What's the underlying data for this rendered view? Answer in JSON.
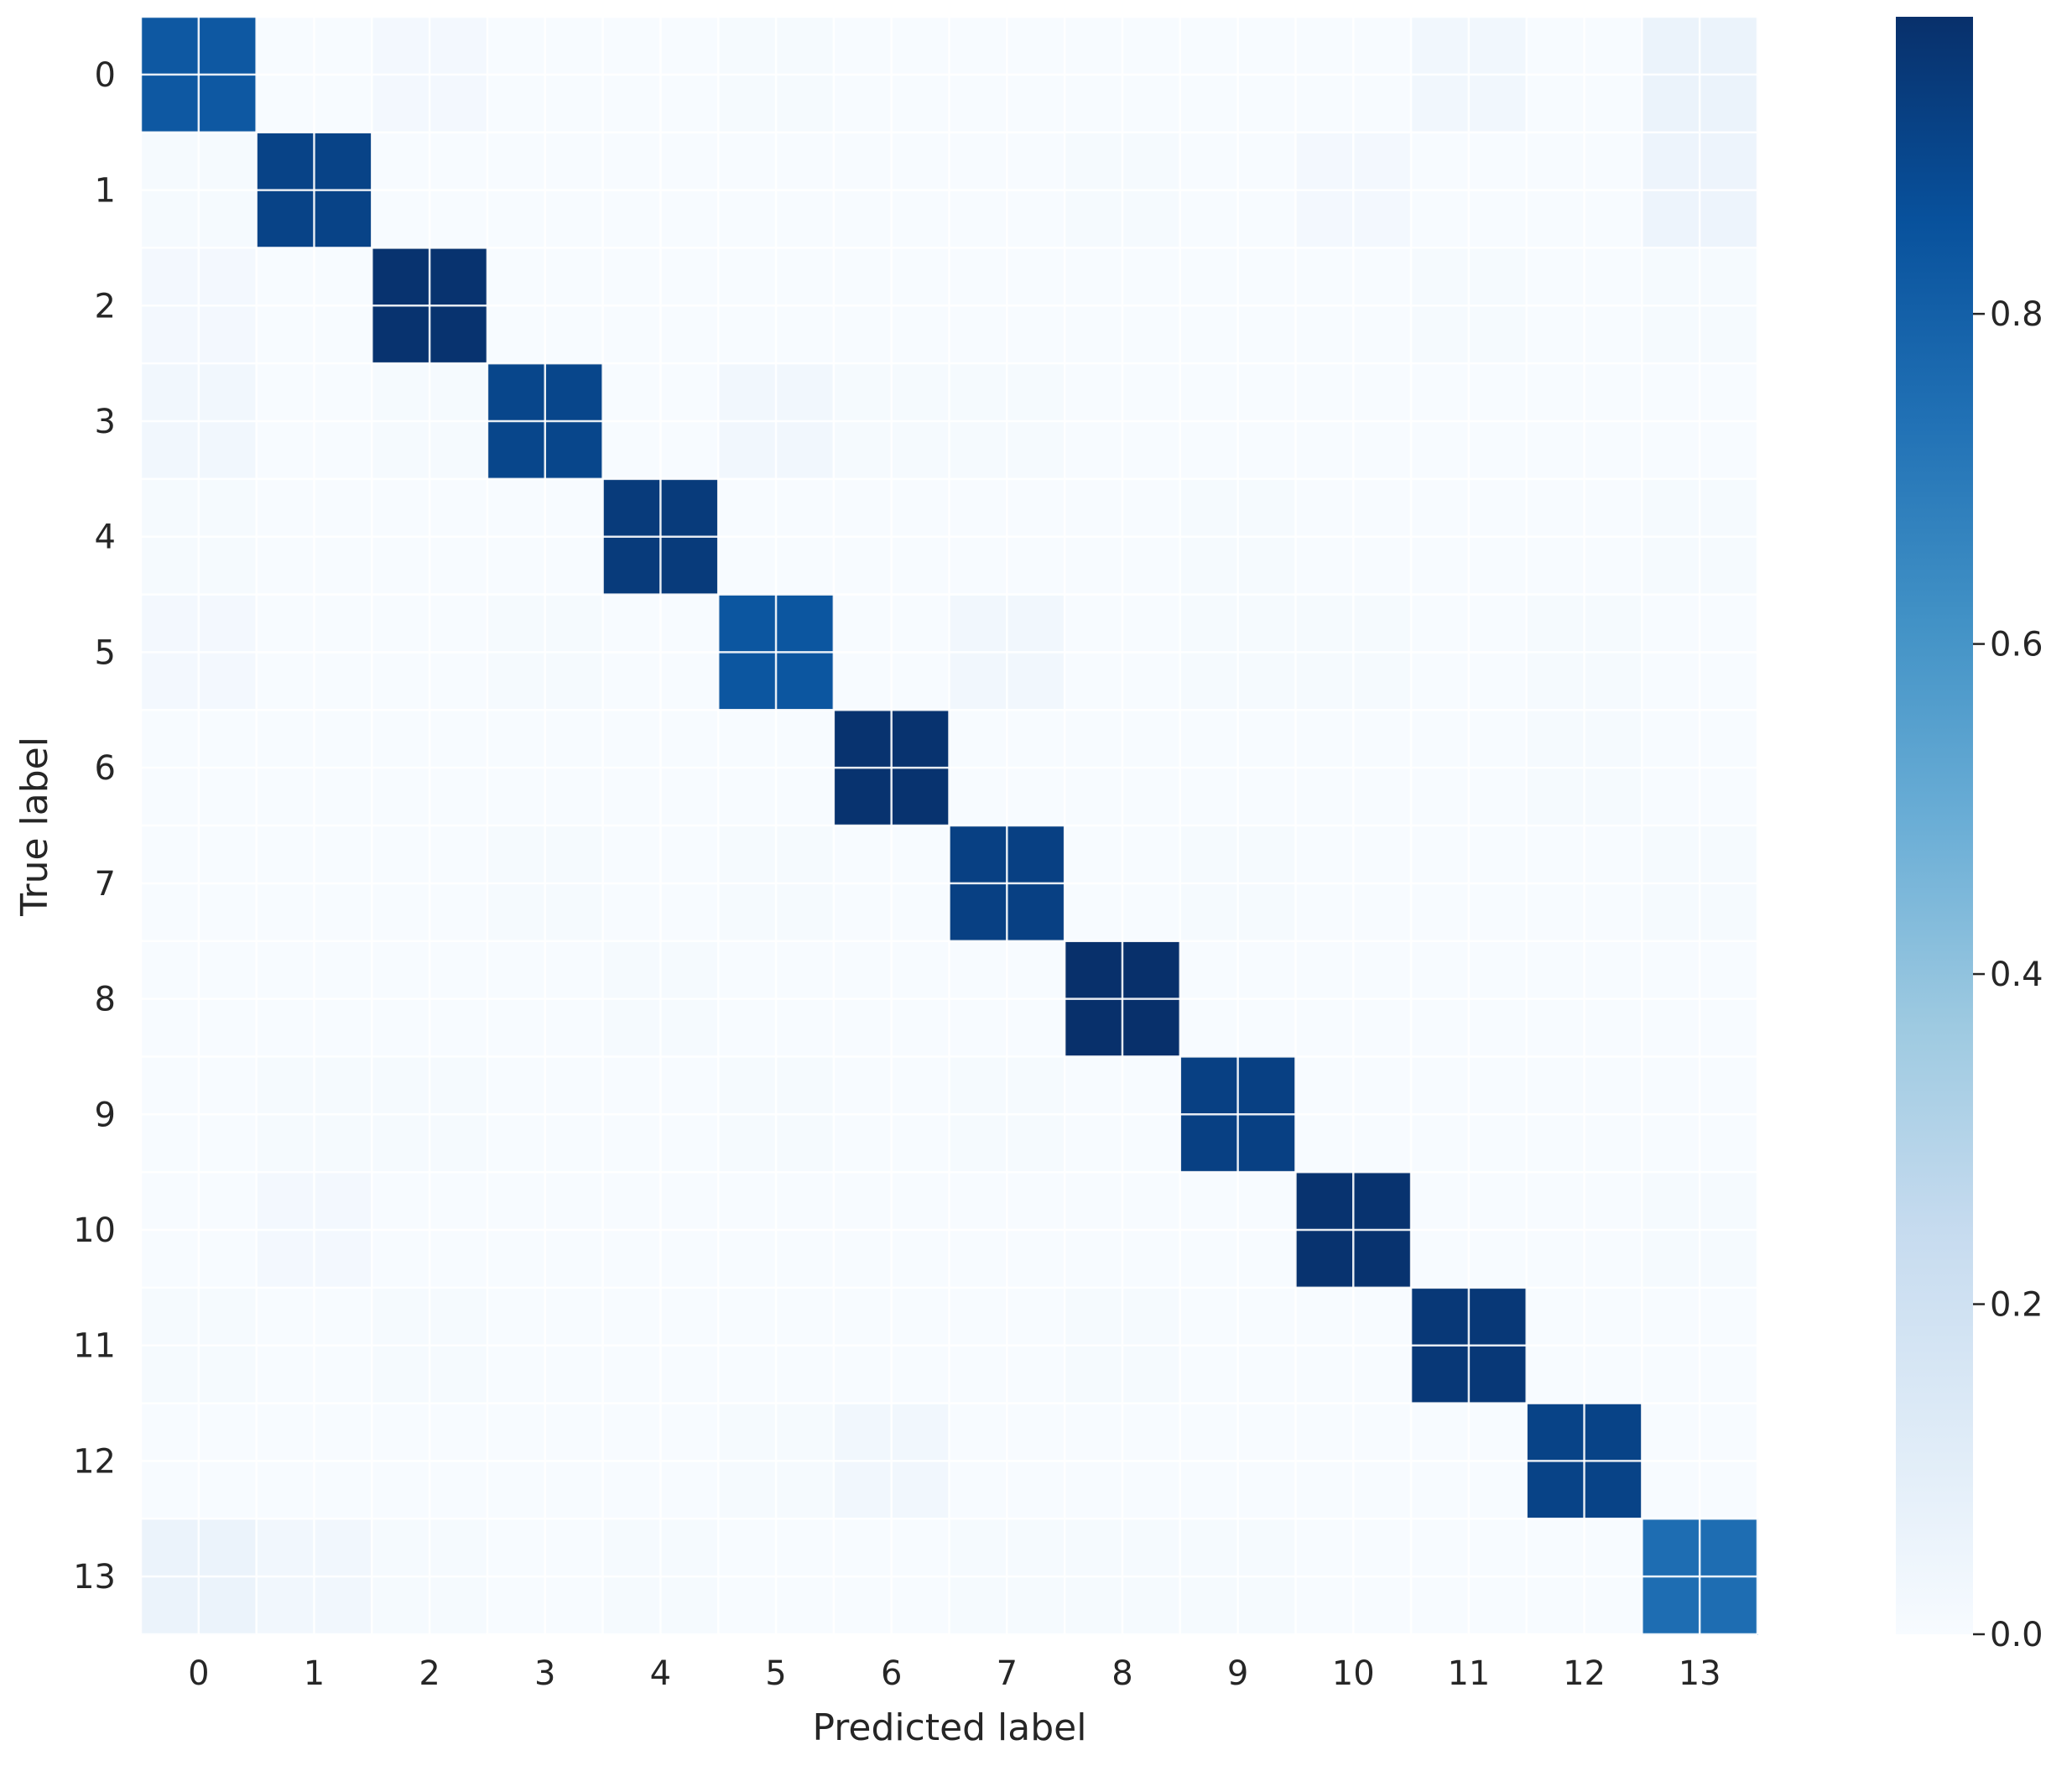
{
  "chart_data": {
    "type": "heatmap",
    "title": "",
    "xlabel": "Predicted label",
    "ylabel": "True label",
    "x_categories": [
      "0",
      "1",
      "2",
      "3",
      "4",
      "5",
      "6",
      "7",
      "8",
      "9",
      "10",
      "11",
      "12",
      "13"
    ],
    "y_categories": [
      "0",
      "1",
      "2",
      "3",
      "4",
      "5",
      "6",
      "7",
      "8",
      "9",
      "10",
      "11",
      "12",
      "13"
    ],
    "values": [
      [
        0.83,
        0.0,
        0.02,
        0.0,
        0.0,
        0.01,
        0.0,
        0.0,
        0.0,
        0.0,
        0.0,
        0.03,
        0.0,
        0.06
      ],
      [
        0.01,
        0.91,
        0.0,
        0.0,
        0.0,
        0.0,
        0.0,
        0.0,
        0.01,
        0.0,
        0.02,
        0.0,
        0.0,
        0.05
      ],
      [
        0.02,
        0.0,
        0.97,
        0.0,
        0.0,
        0.0,
        0.0,
        0.0,
        0.0,
        0.0,
        0.0,
        0.01,
        0.0,
        0.01
      ],
      [
        0.03,
        0.0,
        0.01,
        0.9,
        0.0,
        0.03,
        0.01,
        0.01,
        0.0,
        0.0,
        0.0,
        0.0,
        0.0,
        0.0
      ],
      [
        0.01,
        0.0,
        0.0,
        0.0,
        0.94,
        0.0,
        0.0,
        0.0,
        0.0,
        0.01,
        0.0,
        0.0,
        0.0,
        0.01
      ],
      [
        0.02,
        0.0,
        0.0,
        0.01,
        0.0,
        0.84,
        0.0,
        0.03,
        0.0,
        0.01,
        0.01,
        0.0,
        0.01,
        0.0
      ],
      [
        0.0,
        0.0,
        0.0,
        0.0,
        0.0,
        0.0,
        0.97,
        0.0,
        0.0,
        0.0,
        0.0,
        0.0,
        0.01,
        0.0
      ],
      [
        0.0,
        0.0,
        0.0,
        0.01,
        0.0,
        0.01,
        0.0,
        0.92,
        0.0,
        0.01,
        0.0,
        0.0,
        0.0,
        0.01
      ],
      [
        0.0,
        0.0,
        0.0,
        0.0,
        0.01,
        0.0,
        0.0,
        0.0,
        0.98,
        0.0,
        0.0,
        0.0,
        0.0,
        0.0
      ],
      [
        0.0,
        0.01,
        0.01,
        0.0,
        0.0,
        0.01,
        0.0,
        0.01,
        0.0,
        0.92,
        0.0,
        0.0,
        0.0,
        0.0
      ],
      [
        0.0,
        0.02,
        0.0,
        0.0,
        0.0,
        0.0,
        0.0,
        0.0,
        0.0,
        0.0,
        0.97,
        0.0,
        0.0,
        0.01
      ],
      [
        0.01,
        0.0,
        0.01,
        0.0,
        0.0,
        0.0,
        0.0,
        0.0,
        0.01,
        0.0,
        0.0,
        0.95,
        0.0,
        0.0
      ],
      [
        0.0,
        0.0,
        0.0,
        0.0,
        0.0,
        0.01,
        0.03,
        0.0,
        0.0,
        0.0,
        0.0,
        0.0,
        0.91,
        0.0
      ],
      [
        0.06,
        0.03,
        0.01,
        0.0,
        0.01,
        0.0,
        0.0,
        0.01,
        0.01,
        0.01,
        0.0,
        0.0,
        0.0,
        0.75
      ]
    ],
    "colormap": "Blues",
    "colorbar": {
      "min": 0.0,
      "max": 0.98,
      "ticks": [
        0.0,
        0.2,
        0.4,
        0.6,
        0.8
      ],
      "tick_labels": [
        "0.0",
        "0.2",
        "0.4",
        "0.6",
        "0.8"
      ]
    },
    "grid": true,
    "colors": {
      "grid_line": "#ffffff",
      "text": "#262626",
      "blues": [
        "#f7fbff",
        "#deebf7",
        "#c6dbef",
        "#9ecae1",
        "#6baed6",
        "#4292c6",
        "#2171b5",
        "#08519c",
        "#08306b"
      ]
    }
  }
}
